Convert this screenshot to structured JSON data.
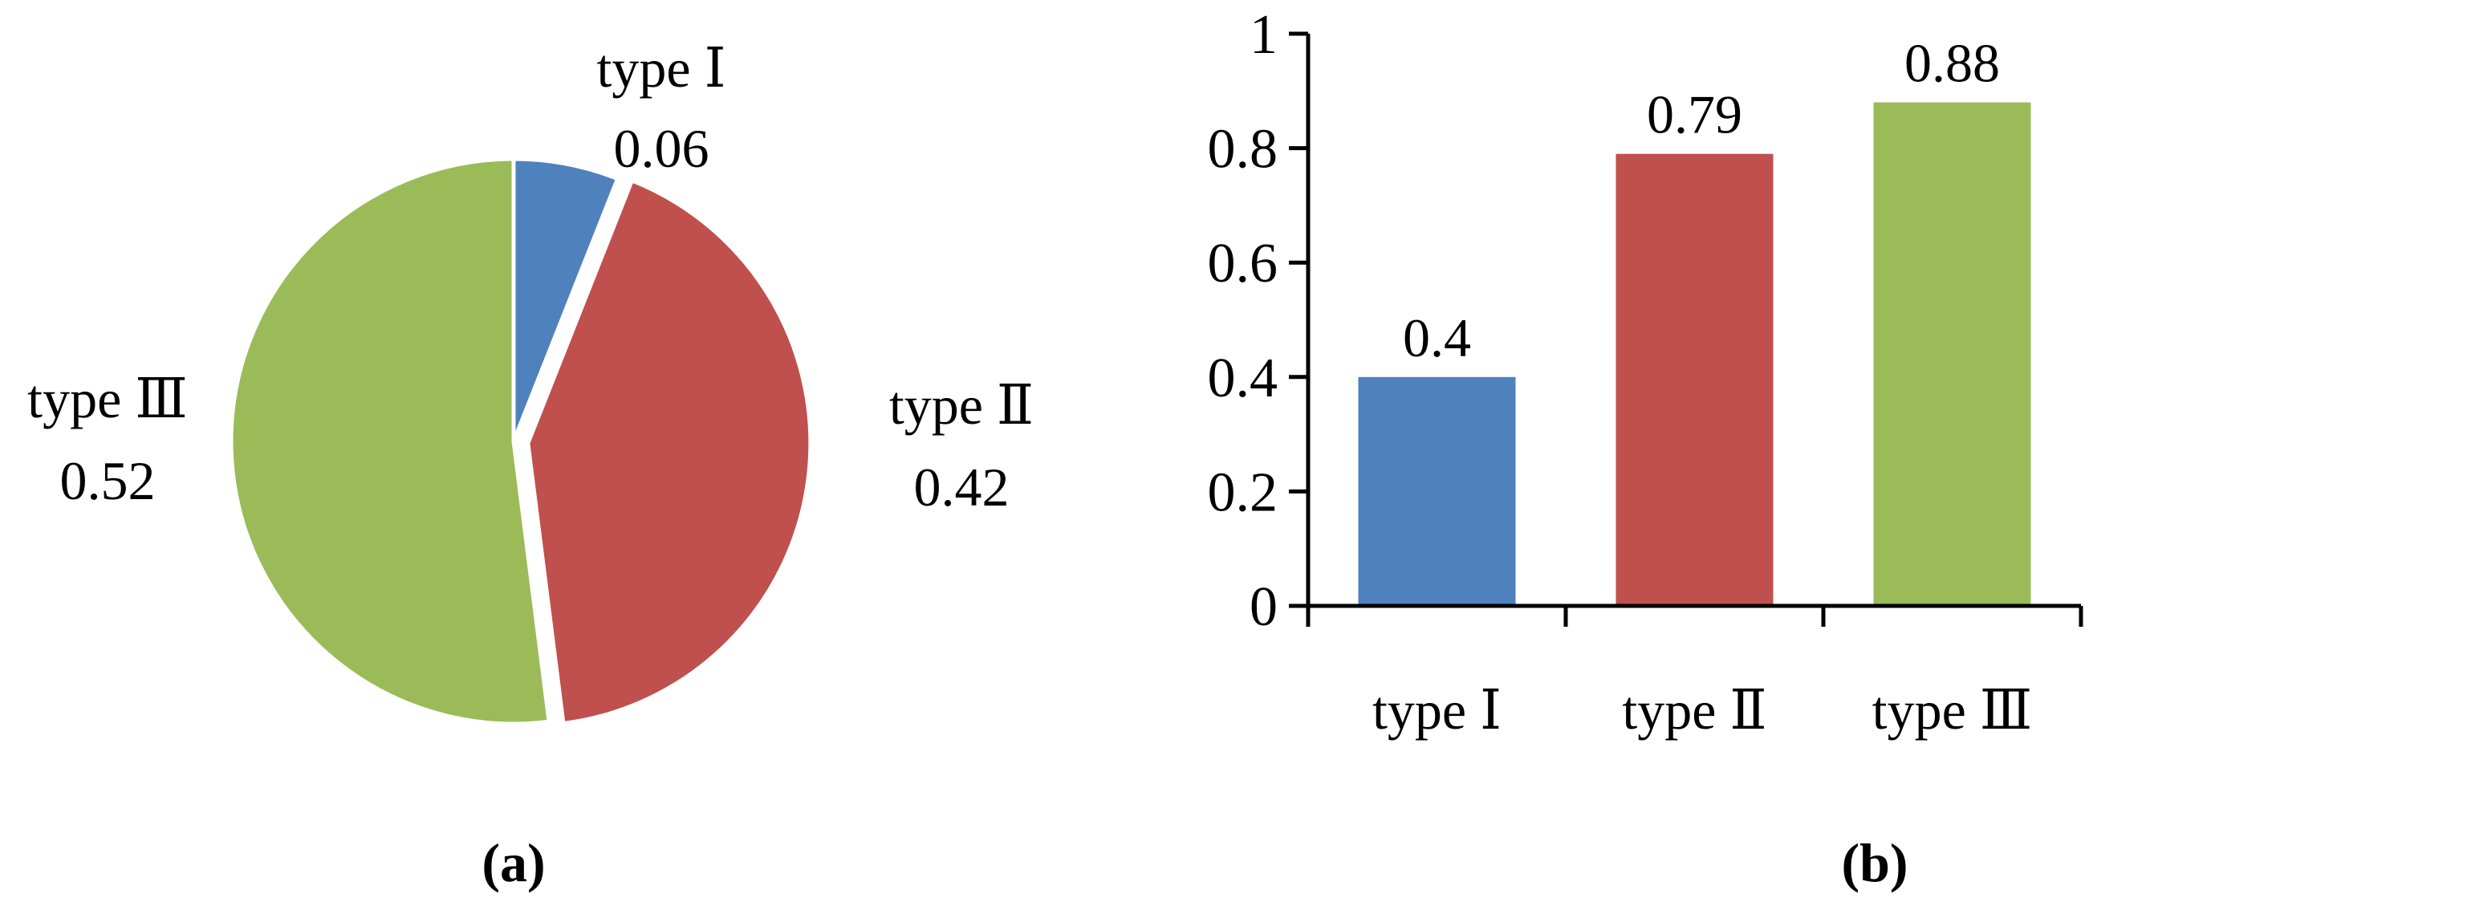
{
  "chart_data": [
    {
      "panel_label": "(a)",
      "type": "pie",
      "slices": [
        {
          "label": "type Ⅰ",
          "value": 0.06,
          "value_label": "0.06",
          "color": "#4f81bd"
        },
        {
          "label": "type Ⅱ",
          "value": 0.42,
          "value_label": "0.42",
          "color": "#c0504d"
        },
        {
          "label": "type Ⅲ",
          "value": 0.52,
          "value_label": "0.52",
          "color": "#9bbb59"
        }
      ],
      "exploded_slice": "type Ⅱ",
      "legend": "none"
    },
    {
      "panel_label": "(b)",
      "type": "bar",
      "categories": [
        "type Ⅰ",
        "type Ⅱ",
        "type Ⅲ"
      ],
      "values": [
        0.4,
        0.79,
        0.88
      ],
      "value_labels": [
        "0.4",
        "0.79",
        "0.88"
      ],
      "colors": [
        "#4f81bd",
        "#c0504d",
        "#9bbb59"
      ],
      "ylim": [
        0,
        1
      ],
      "yticks": [
        0,
        0.2,
        0.4,
        0.6,
        0.8,
        1
      ],
      "ytick_labels": [
        "0",
        "0.2",
        "0.4",
        "0.6",
        "0.8",
        "1"
      ],
      "grid": false,
      "legend": "none"
    }
  ]
}
